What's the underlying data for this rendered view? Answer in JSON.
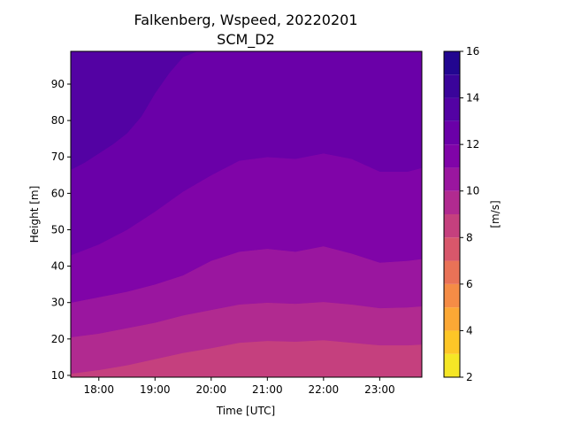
{
  "chart_data": {
    "type": "contourf",
    "title": "Falkenberg, Wspeed, 20220201",
    "subtitle": "SCM_D2",
    "xlabel": "Time [UTC]",
    "ylabel": "Height [m]",
    "x_unit": "hours UTC",
    "xlim": [
      17.5,
      23.75
    ],
    "ylim": [
      9.5,
      99
    ],
    "x_ticks": [
      18,
      19,
      20,
      21,
      22,
      23
    ],
    "x_tick_labels": [
      "18:00",
      "19:00",
      "20:00",
      "21:00",
      "22:00",
      "23:00"
    ],
    "y_ticks": [
      10,
      20,
      30,
      40,
      50,
      60,
      70,
      80,
      90
    ],
    "colorbar": {
      "label": "[m/s]",
      "colormap": "plasma",
      "levels": [
        2,
        3,
        4,
        5,
        6,
        7,
        8,
        9,
        10,
        11,
        12,
        13,
        14,
        15,
        16
      ],
      "ticks": [
        2,
        4,
        6,
        8,
        10,
        12,
        14,
        16
      ],
      "colors": [
        "#f5e626",
        "#fdc627",
        "#fca835",
        "#f58c46",
        "#e97257",
        "#d8576b",
        "#c5407e",
        "#b12a90",
        "#9a169f",
        "#8004a8",
        "#6a00a8",
        "#5302a3",
        "#3a049a",
        "#220690"
      ]
    },
    "contour_boundaries": [
      {
        "level": 9,
        "x": [
          17.5,
          18.0,
          18.5,
          19.0,
          19.5,
          20.0,
          20.5,
          21.0,
          21.5,
          22.0,
          22.5,
          23.0,
          23.5,
          23.75
        ],
        "height": [
          10.5,
          11.5,
          12.8,
          14.5,
          16.2,
          17.5,
          19.0,
          19.5,
          19.3,
          19.7,
          19.0,
          18.3,
          18.3,
          18.5
        ]
      },
      {
        "level": 10,
        "x": [
          17.5,
          18.0,
          18.5,
          19.0,
          19.5,
          20.0,
          20.5,
          21.0,
          21.5,
          22.0,
          22.5,
          23.0,
          23.5,
          23.75
        ],
        "height": [
          20.5,
          21.5,
          23.0,
          24.5,
          26.5,
          28.0,
          29.5,
          30.0,
          29.7,
          30.2,
          29.5,
          28.5,
          28.7,
          29.0
        ]
      },
      {
        "level": 11,
        "x": [
          17.5,
          18.0,
          18.5,
          19.0,
          19.5,
          20.0,
          20.5,
          21.0,
          21.5,
          22.0,
          22.5,
          23.0,
          23.5,
          23.75
        ],
        "height": [
          30.0,
          31.5,
          33.0,
          35.0,
          37.5,
          41.5,
          44.0,
          44.8,
          44.0,
          45.5,
          43.5,
          41.0,
          41.5,
          42.0
        ]
      },
      {
        "level": 12,
        "x": [
          17.5,
          18.0,
          18.5,
          19.0,
          19.5,
          20.0,
          20.5,
          21.0,
          21.5,
          22.0,
          22.5,
          23.0,
          23.5,
          23.75
        ],
        "height": [
          43.0,
          46.0,
          50.0,
          55.0,
          60.5,
          65.0,
          69.0,
          70.0,
          69.5,
          71.0,
          69.5,
          66.0,
          66.0,
          67.0
        ]
      },
      {
        "level": 13,
        "x": [
          17.5,
          17.75,
          18.0,
          18.25,
          18.5,
          18.75,
          19.0,
          19.25,
          19.5,
          19.75,
          20.0
        ],
        "height": [
          66.5,
          68.5,
          71.0,
          73.5,
          76.5,
          81.0,
          87.5,
          93.0,
          97.5,
          99.0,
          99.0
        ]
      }
    ]
  }
}
